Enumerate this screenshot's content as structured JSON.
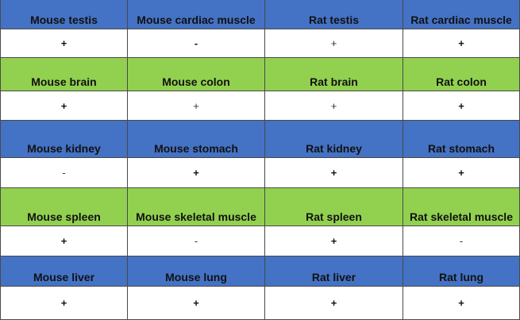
{
  "colors": {
    "blue_band": "#4472c4",
    "green_band": "#92d050",
    "value_row": "#ffffff"
  },
  "rows": [
    {
      "band": "blue",
      "headers": [
        "Mouse testis",
        "Mouse cardiac muscle",
        "Rat testis",
        "Rat cardiac muscle"
      ],
      "values": [
        "+",
        "-",
        "+",
        "+"
      ],
      "bold": [
        true,
        true,
        false,
        true
      ]
    },
    {
      "band": "green",
      "headers": [
        "Mouse brain",
        "Mouse colon",
        "Rat brain",
        "Rat colon"
      ],
      "values": [
        "+",
        "+",
        "+",
        "+"
      ],
      "bold": [
        true,
        false,
        false,
        true
      ]
    },
    {
      "band": "blue",
      "headers": [
        "Mouse kidney",
        "Mouse stomach",
        "Rat kidney",
        "Rat stomach"
      ],
      "values": [
        "-",
        "+",
        "+",
        "+"
      ],
      "bold": [
        false,
        true,
        true,
        true
      ]
    },
    {
      "band": "green",
      "headers": [
        "Mouse spleen",
        "Mouse skeletal muscle",
        "Rat spleen",
        "Rat skeletal muscle"
      ],
      "values": [
        "+",
        "-",
        "+",
        "-"
      ],
      "bold": [
        true,
        false,
        true,
        false
      ]
    },
    {
      "band": "blue",
      "headers": [
        "Mouse liver",
        "Mouse lung",
        "Rat liver",
        "Rat lung"
      ],
      "values": [
        "+",
        "+",
        "+",
        "+"
      ],
      "bold": [
        true,
        true,
        true,
        true
      ]
    }
  ]
}
